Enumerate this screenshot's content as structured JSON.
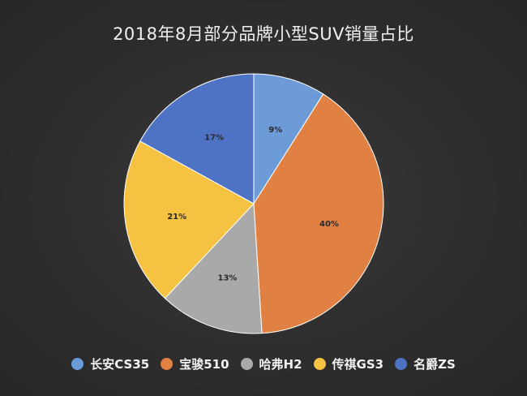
{
  "chart_data": {
    "type": "pie",
    "title": "2018年8月部分品牌小型SUV销量占比",
    "legend_position": "bottom",
    "slices": [
      {
        "name": "长安CS35",
        "value": 9,
        "label": "9%",
        "color": "#6c9bd8"
      },
      {
        "name": "宝骏510",
        "value": 40,
        "label": "40%",
        "color": "#e08042"
      },
      {
        "name": "哈弗H2",
        "value": 13,
        "label": "13%",
        "color": "#a9a9a9"
      },
      {
        "name": "传祺GS3",
        "value": 21,
        "label": "21%",
        "color": "#f5c242"
      },
      {
        "name": "名爵ZS",
        "value": 17,
        "label": "17%",
        "color": "#4e73c4"
      }
    ]
  }
}
